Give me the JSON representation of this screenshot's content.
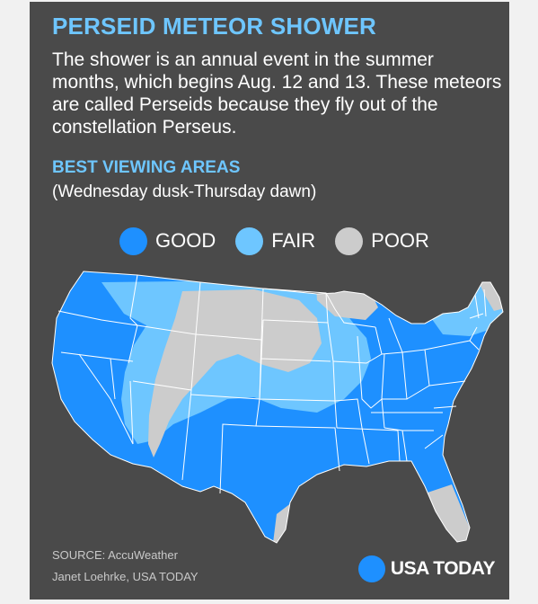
{
  "header": {
    "title": "PERSEID METEOR SHOWER",
    "description": "The shower is an annual event in the summer months, which begins Aug. 12 and 13. These meteors are called Perseids because they fly out of the constellation Perseus."
  },
  "section": {
    "heading": "BEST VIEWING AREAS",
    "subheading": "(Wednesday dusk-Thursday dawn)"
  },
  "legend": [
    {
      "label": "GOOD",
      "color": "#1e90ff"
    },
    {
      "label": "FAIR",
      "color": "#6ec6ff"
    },
    {
      "label": "POOR",
      "color": "#cccccc"
    }
  ],
  "map": {
    "region": "contiguous-united-states",
    "colors": {
      "good": "#1e90ff",
      "fair": "#6ec6ff",
      "poor": "#cccccc",
      "borders": "#ffffff"
    }
  },
  "footer": {
    "source": "SOURCE:  AccuWeather",
    "credit": "Janet Loehrke, USA TODAY",
    "brand": "USA TODAY",
    "brand_color": "#1e90ff"
  }
}
